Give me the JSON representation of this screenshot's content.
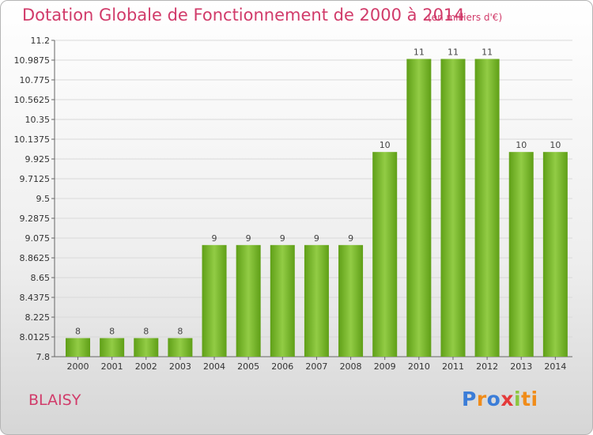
{
  "title": "Dotation Globale de Fonctionnement de 2000 à 2014",
  "subtitle": "(en milliers d'€)",
  "town": "BLAISY",
  "logo": {
    "text": "Proxiti",
    "letters": [
      "P",
      "r",
      "o",
      "x",
      "i",
      "ti"
    ]
  },
  "chart_data": {
    "type": "bar",
    "categories": [
      "2000",
      "2001",
      "2002",
      "2003",
      "2004",
      "2005",
      "2006",
      "2007",
      "2008",
      "2009",
      "2010",
      "2011",
      "2012",
      "2013",
      "2014"
    ],
    "values": [
      8,
      8,
      8,
      8,
      9,
      9,
      9,
      9,
      9,
      10,
      11,
      11,
      11,
      10,
      10
    ],
    "data_labels": [
      "8",
      "8",
      "8",
      "8",
      "9",
      "9",
      "9",
      "9",
      "9",
      "10",
      "11",
      "11",
      "11",
      "10",
      "10"
    ],
    "ylim": [
      7.8,
      11.2
    ],
    "yticks": [
      "7.8",
      "8.0125",
      "8.225",
      "8.4375",
      "8.65",
      "8.8625",
      "9.075",
      "9.2875",
      "9.5",
      "9.7125",
      "9.925",
      "10.1375",
      "10.35",
      "10.5625",
      "10.775",
      "10.9875",
      "11.2"
    ],
    "bar_color": "#77b82b",
    "grid": true,
    "title": "Dotation Globale de Fonctionnement de 2000 à 2014",
    "xlabel": "",
    "ylabel": ""
  }
}
